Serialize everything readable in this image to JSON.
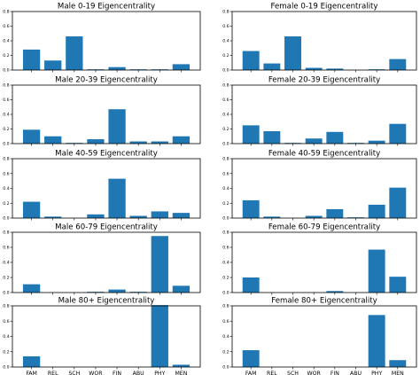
{
  "chart_data": [
    {
      "type": "bar",
      "title": "Male 0-19 Eigencentrality",
      "categories": [
        "FAM",
        "REL",
        "SCH",
        "WOR",
        "FIN",
        "ABU",
        "PHY",
        "MEN"
      ],
      "values": [
        0.28,
        0.13,
        0.46,
        0.01,
        0.04,
        0.01,
        0.01,
        0.08
      ],
      "ylim": [
        0,
        0.8
      ],
      "yticks": [
        "0.0",
        "0.2",
        "0.4",
        "0.6",
        "0.8"
      ]
    },
    {
      "type": "bar",
      "title": "Female 0-19 Eigencentrality",
      "categories": [
        "FAM",
        "REL",
        "SCH",
        "WOR",
        "FIN",
        "ABU",
        "PHY",
        "MEN"
      ],
      "values": [
        0.26,
        0.09,
        0.46,
        0.03,
        0.02,
        0.0,
        0.01,
        0.15
      ],
      "ylim": [
        0,
        0.8
      ],
      "yticks": [
        "0.0",
        "0.2",
        "0.4",
        "0.6",
        "0.8"
      ]
    },
    {
      "type": "bar",
      "title": "Male 20-39 Eigencentrality",
      "categories": [
        "FAM",
        "REL",
        "SCH",
        "WOR",
        "FIN",
        "ABU",
        "PHY",
        "MEN"
      ],
      "values": [
        0.19,
        0.1,
        0.01,
        0.06,
        0.47,
        0.03,
        0.03,
        0.1
      ],
      "ylim": [
        0,
        0.8
      ],
      "yticks": [
        "0.0",
        "0.2",
        "0.4",
        "0.6",
        "0.8"
      ]
    },
    {
      "type": "bar",
      "title": "Female 20-39 Eigencentrality",
      "categories": [
        "FAM",
        "REL",
        "SCH",
        "WOR",
        "FIN",
        "ABU",
        "PHY",
        "MEN"
      ],
      "values": [
        0.25,
        0.17,
        0.01,
        0.07,
        0.16,
        0.01,
        0.04,
        0.27
      ],
      "ylim": [
        0,
        0.8
      ],
      "yticks": [
        "0.0",
        "0.2",
        "0.4",
        "0.6",
        "0.8"
      ]
    },
    {
      "type": "bar",
      "title": "Male 40-59 Eigencentrality",
      "categories": [
        "FAM",
        "REL",
        "SCH",
        "WOR",
        "FIN",
        "ABU",
        "PHY",
        "MEN"
      ],
      "values": [
        0.22,
        0.02,
        0.0,
        0.05,
        0.53,
        0.03,
        0.09,
        0.07
      ],
      "ylim": [
        0,
        0.8
      ],
      "yticks": [
        "0.0",
        "0.2",
        "0.4",
        "0.6",
        "0.8"
      ]
    },
    {
      "type": "bar",
      "title": "Female 40-59 Eigencentrality",
      "categories": [
        "FAM",
        "REL",
        "SCH",
        "WOR",
        "FIN",
        "ABU",
        "PHY",
        "MEN"
      ],
      "values": [
        0.24,
        0.02,
        0.0,
        0.03,
        0.12,
        0.01,
        0.18,
        0.41
      ],
      "ylim": [
        0,
        0.8
      ],
      "yticks": [
        "0.0",
        "0.2",
        "0.4",
        "0.6",
        "0.8"
      ]
    },
    {
      "type": "bar",
      "title": "Male 60-79 Eigencentrality",
      "categories": [
        "FAM",
        "REL",
        "SCH",
        "WOR",
        "FIN",
        "ABU",
        "PHY",
        "MEN"
      ],
      "values": [
        0.11,
        0.0,
        0.0,
        0.01,
        0.04,
        0.01,
        0.75,
        0.09
      ],
      "ylim": [
        0,
        0.8
      ],
      "yticks": [
        "0.0",
        "0.2",
        "0.4",
        "0.6",
        "0.8"
      ]
    },
    {
      "type": "bar",
      "title": "Female 60-79 Eigencentrality",
      "categories": [
        "FAM",
        "REL",
        "SCH",
        "WOR",
        "FIN",
        "ABU",
        "PHY",
        "MEN"
      ],
      "values": [
        0.2,
        0.0,
        0.0,
        0.0,
        0.02,
        0.0,
        0.57,
        0.21
      ],
      "ylim": [
        0,
        0.8
      ],
      "yticks": [
        "0.0",
        "0.2",
        "0.4",
        "0.6",
        "0.8"
      ]
    },
    {
      "type": "bar",
      "title": "Male 80+ Eigencentrality",
      "categories": [
        "FAM",
        "REL",
        "SCH",
        "WOR",
        "FIN",
        "ABU",
        "PHY",
        "MEN"
      ],
      "values": [
        0.14,
        0.0,
        0.0,
        0.0,
        0.0,
        0.0,
        0.81,
        0.03
      ],
      "ylim": [
        0,
        0.8
      ],
      "yticks": [
        "0.0",
        "0.2",
        "0.4",
        "0.6",
        "0.8"
      ]
    },
    {
      "type": "bar",
      "title": "Female 80+ Eigencentrality",
      "categories": [
        "FAM",
        "REL",
        "SCH",
        "WOR",
        "FIN",
        "ABU",
        "PHY",
        "MEN"
      ],
      "values": [
        0.22,
        0.0,
        0.0,
        0.0,
        0.0,
        0.0,
        0.68,
        0.09
      ],
      "ylim": [
        0,
        0.8
      ],
      "yticks": [
        "0.0",
        "0.2",
        "0.4",
        "0.6",
        "0.8"
      ]
    }
  ],
  "colors": {
    "bar": "#1f77b4",
    "axes": "#000000",
    "background": "#ffffff"
  },
  "grid": false
}
